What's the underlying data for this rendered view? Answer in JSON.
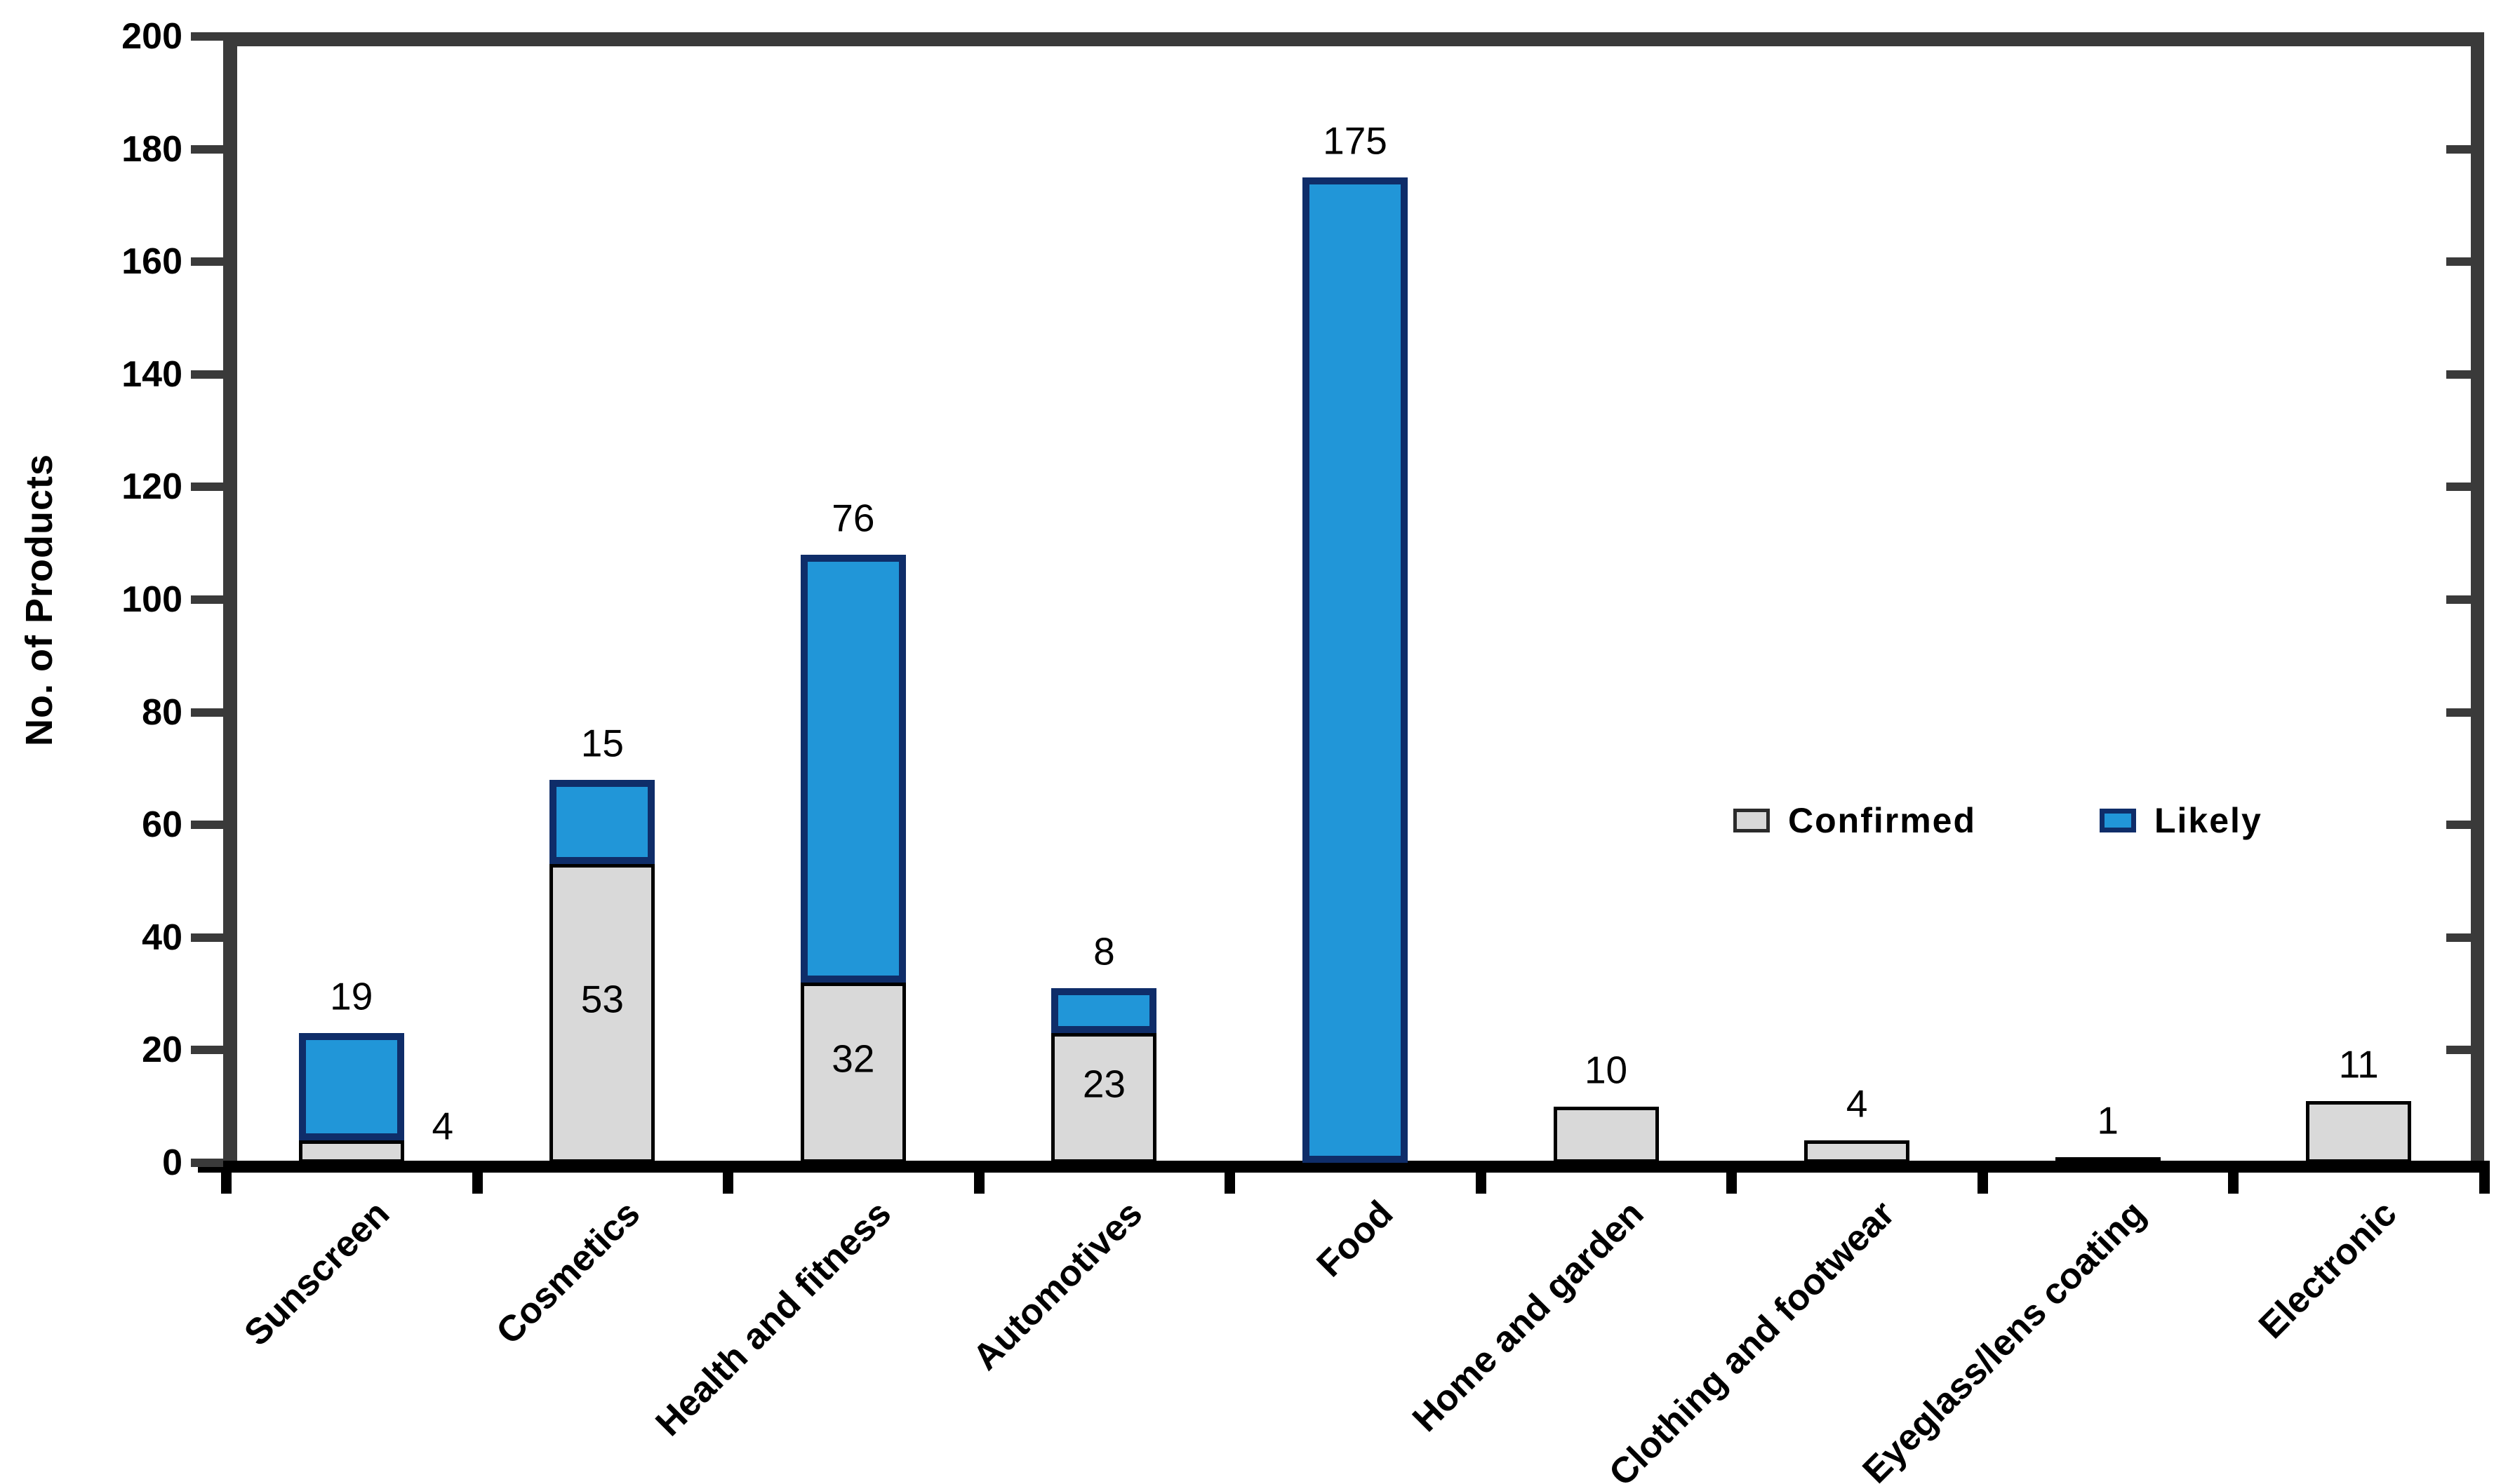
{
  "chart_data": {
    "type": "bar",
    "stacked": true,
    "title": "",
    "xlabel": "",
    "ylabel": "No. of Products",
    "ylim": [
      0,
      200
    ],
    "ytick_step": 20,
    "yticks": [
      0,
      20,
      40,
      60,
      80,
      100,
      120,
      140,
      160,
      180,
      200
    ],
    "grid": false,
    "legend_position": "center-right",
    "categories": [
      "Sunscreen",
      "Cosmetics",
      "Health and fitness",
      "Automotives",
      "Food",
      "Home and garden",
      "Clothing and footwear",
      "Eyeglass/lens coating",
      "Electronic"
    ],
    "series": [
      {
        "name": "Confirmed",
        "color": "#d9d9d9",
        "border_color": "#000000",
        "values": [
          4,
          53,
          32,
          23,
          0,
          10,
          4,
          1,
          11
        ]
      },
      {
        "name": "Likely",
        "color": "#2196d8",
        "border_color": "#0f2d69",
        "values": [
          19,
          15,
          76,
          8,
          175,
          0,
          0,
          0,
          0
        ]
      }
    ],
    "visible_data_labels": {
      "confirmed": [
        "4",
        "53",
        "32",
        "23",
        "",
        "10",
        "4",
        "1",
        "11"
      ],
      "likely": [
        "19",
        "15",
        "76",
        "8",
        "175",
        "",
        "",
        "",
        ""
      ]
    }
  },
  "colors": {
    "frame_axis": "#3a3a3a",
    "bottom_axis": "#000000",
    "background": "#ffffff",
    "text": "#000000"
  }
}
